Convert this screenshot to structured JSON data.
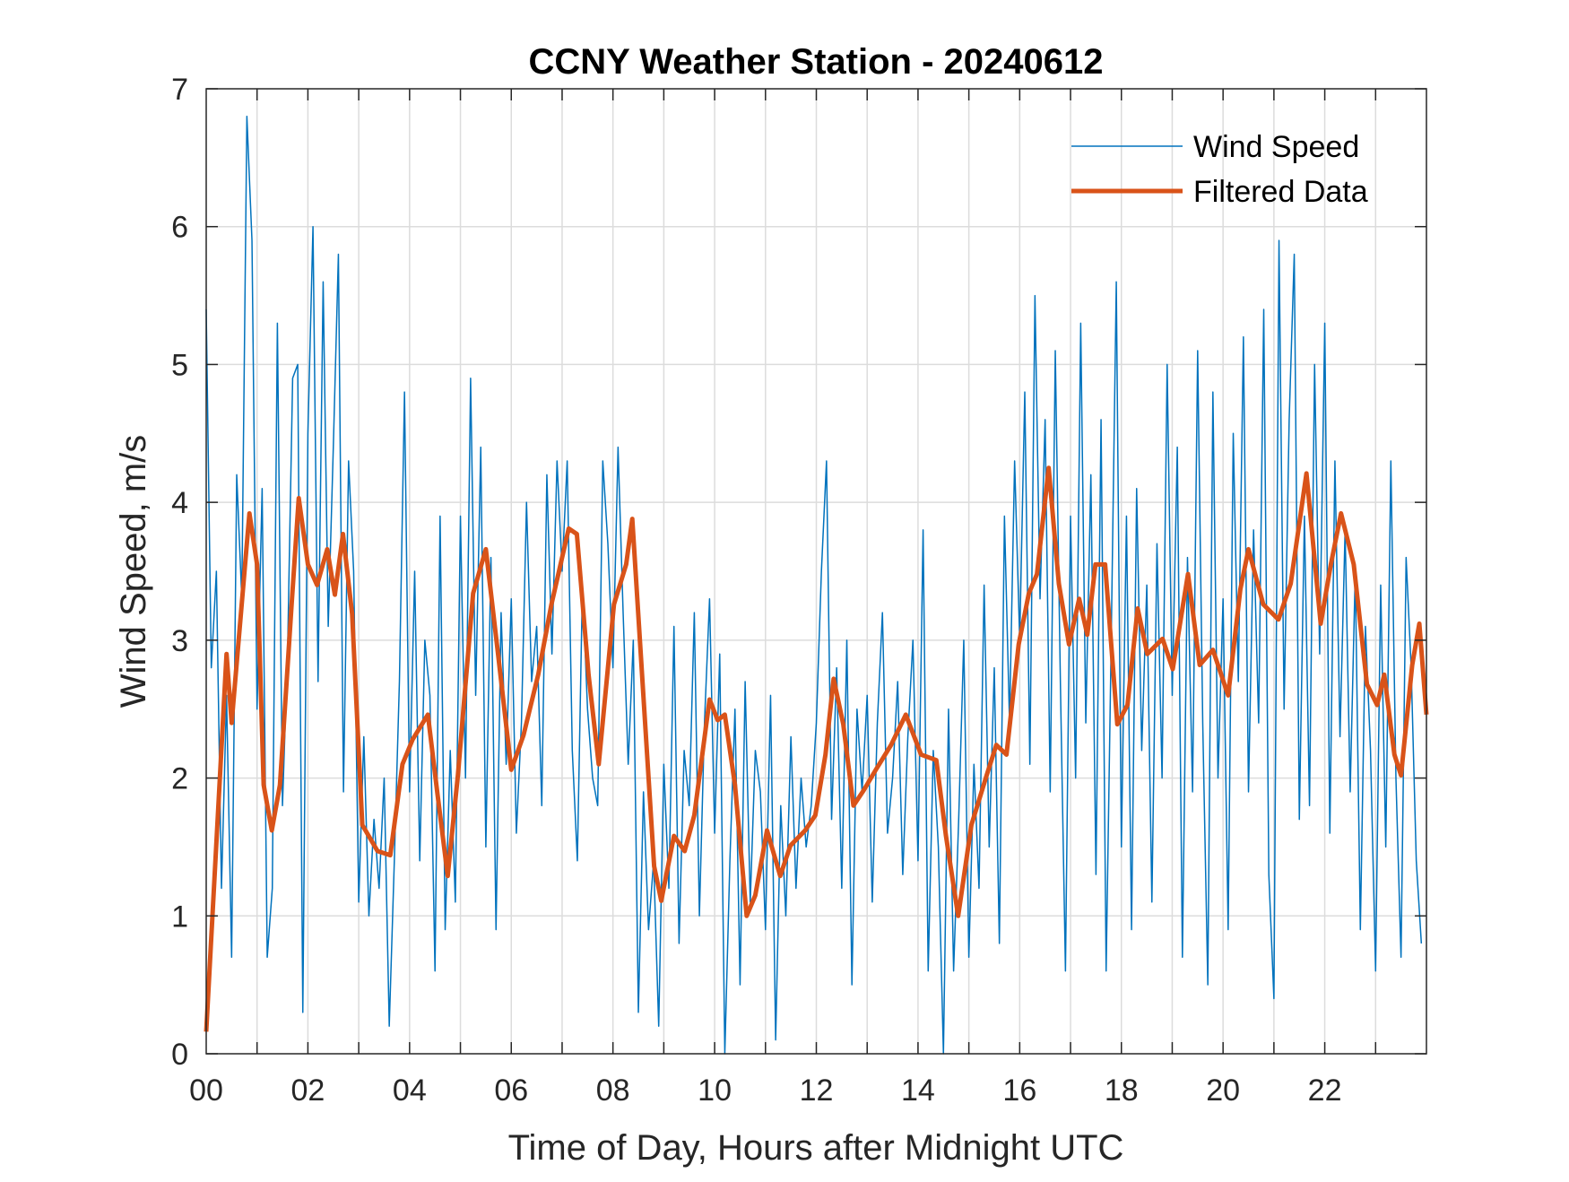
{
  "chart_data": {
    "type": "line",
    "title": "CCNY Weather Station - 20240612",
    "xlabel": "Time of Day, Hours after Midnight UTC",
    "ylabel": "Wind Speed, m/s",
    "xlim": [
      0,
      24
    ],
    "ylim": [
      0,
      7
    ],
    "xticks": [
      0,
      2,
      4,
      6,
      8,
      10,
      12,
      14,
      16,
      18,
      20,
      22
    ],
    "xtick_labels": [
      "00",
      "02",
      "04",
      "06",
      "08",
      "10",
      "12",
      "14",
      "16",
      "18",
      "20",
      "22"
    ],
    "yticks": [
      0,
      1,
      2,
      3,
      4,
      5,
      6,
      7
    ],
    "ytick_labels": [
      "0",
      "1",
      "2",
      "3",
      "4",
      "5",
      "6",
      "7"
    ],
    "grid": true,
    "legend_position": "top-right",
    "series": [
      {
        "name": "Wind Speed",
        "color": "#0072BD",
        "values": [
          5.4,
          2.8,
          3.5,
          1.2,
          2.6,
          0.7,
          4.2,
          3.3,
          6.8,
          5.9,
          2.5,
          4.1,
          0.7,
          1.2,
          5.3,
          1.8,
          2.9,
          4.9,
          5.0,
          0.3,
          4.5,
          6.0,
          2.7,
          5.6,
          3.1,
          4.4,
          5.8,
          1.9,
          4.3,
          3.5,
          1.1,
          2.3,
          1.0,
          1.7,
          1.2,
          2.0,
          0.2,
          1.4,
          2.7,
          4.8,
          1.9,
          3.5,
          1.4,
          3.0,
          2.6,
          0.6,
          3.9,
          0.9,
          2.2,
          1.1,
          3.9,
          2.0,
          4.9,
          2.6,
          4.4,
          1.5,
          3.6,
          0.9,
          3.2,
          2.1,
          3.3,
          1.6,
          2.4,
          4.0,
          2.7,
          3.1,
          1.8,
          4.2,
          2.9,
          4.3,
          3.5,
          4.3,
          2.2,
          1.4,
          3.4,
          2.5,
          2.0,
          1.8,
          4.3,
          3.7,
          2.8,
          4.4,
          3.2,
          2.1,
          3.0,
          0.3,
          1.9,
          0.9,
          1.4,
          0.2,
          2.1,
          1.2,
          3.1,
          0.8,
          2.2,
          1.8,
          3.2,
          1.0,
          2.4,
          3.3,
          1.6,
          2.9,
          0.0,
          1.4,
          2.5,
          0.5,
          2.7,
          1.1,
          2.2,
          1.9,
          0.9,
          2.6,
          0.1,
          1.8,
          1.0,
          2.3,
          1.2,
          2.0,
          1.5,
          1.8,
          2.4,
          3.5,
          4.3,
          1.7,
          2.8,
          1.2,
          3.0,
          0.5,
          2.5,
          1.9,
          2.6,
          1.1,
          2.4,
          3.2,
          1.6,
          2.0,
          2.7,
          1.3,
          2.3,
          3.0,
          1.4,
          3.8,
          0.6,
          2.2,
          1.5,
          0.0,
          2.5,
          0.6,
          1.7,
          3.0,
          0.7,
          2.1,
          1.2,
          3.4,
          1.5,
          2.8,
          0.8,
          3.9,
          2.4,
          4.3,
          3.0,
          4.8,
          2.1,
          5.5,
          3.3,
          4.6,
          1.9,
          5.1,
          2.7,
          0.6,
          3.9,
          2.0,
          5.3,
          2.4,
          4.2,
          1.3,
          4.6,
          0.6,
          3.0,
          5.6,
          1.5,
          3.9,
          0.9,
          4.1,
          2.2,
          3.4,
          1.1,
          3.7,
          2.0,
          5.0,
          2.6,
          4.4,
          0.7,
          3.6,
          1.9,
          5.1,
          2.4,
          0.5,
          4.8,
          2.0,
          3.3,
          0.9,
          4.5,
          2.7,
          5.2,
          1.9,
          3.8,
          2.4,
          5.4,
          1.3,
          0.4,
          5.9,
          2.5,
          4.6,
          5.8,
          1.7,
          3.9,
          1.8,
          5.0,
          2.9,
          5.3,
          1.6,
          4.3,
          2.3,
          3.8,
          1.9,
          3.5,
          0.9,
          3.1,
          2.2,
          0.6,
          3.4,
          1.5,
          4.3,
          2.0,
          0.7,
          3.6,
          2.8,
          1.4,
          0.8
        ]
      },
      {
        "name": "Filtered Data",
        "color": "#D95319",
        "x": [
          0,
          0.4,
          0.5,
          0.85,
          1.0,
          1.13,
          1.29,
          1.45,
          1.68,
          1.82,
          2.0,
          2.18,
          2.38,
          2.53,
          2.69,
          2.87,
          3.07,
          3.37,
          3.62,
          3.86,
          4.06,
          4.36,
          4.55,
          4.75,
          4.95,
          5.25,
          5.5,
          5.74,
          6.0,
          6.24,
          6.53,
          6.79,
          7.13,
          7.29,
          7.52,
          7.72,
          8.02,
          8.26,
          8.38,
          8.61,
          8.81,
          8.95,
          9.2,
          9.41,
          9.6,
          9.9,
          10.06,
          10.2,
          10.4,
          10.63,
          10.8,
          11.03,
          11.29,
          11.49,
          11.78,
          11.98,
          12.18,
          12.34,
          12.53,
          12.73,
          12.93,
          13.17,
          13.47,
          13.76,
          14.06,
          14.36,
          14.55,
          14.79,
          15.05,
          15.35,
          15.54,
          15.74,
          15.98,
          16.18,
          16.34,
          16.57,
          16.77,
          16.97,
          17.17,
          17.33,
          17.49,
          17.68,
          17.92,
          18.12,
          18.32,
          18.51,
          18.81,
          19.01,
          19.31,
          19.54,
          19.8,
          20.1,
          20.34,
          20.5,
          20.79,
          21.09,
          21.33,
          21.64,
          21.92,
          22.12,
          22.32,
          22.57,
          22.83,
          23.03,
          23.17,
          23.37,
          23.5,
          23.72,
          23.86,
          24.0
        ],
        "y": [
          0.16,
          2.9,
          2.4,
          3.92,
          3.55,
          1.95,
          1.62,
          1.95,
          3.26,
          4.03,
          3.55,
          3.4,
          3.66,
          3.33,
          3.77,
          3.19,
          1.66,
          1.47,
          1.44,
          2.1,
          2.28,
          2.46,
          1.88,
          1.29,
          2.02,
          3.34,
          3.66,
          2.9,
          2.06,
          2.31,
          2.75,
          3.26,
          3.81,
          3.77,
          2.75,
          2.1,
          3.26,
          3.55,
          3.88,
          2.53,
          1.36,
          1.11,
          1.58,
          1.47,
          1.73,
          2.57,
          2.42,
          2.46,
          1.95,
          1.0,
          1.15,
          1.62,
          1.29,
          1.51,
          1.62,
          1.73,
          2.17,
          2.72,
          2.39,
          1.8,
          1.91,
          2.06,
          2.24,
          2.46,
          2.17,
          2.13,
          1.58,
          1.0,
          1.66,
          2.02,
          2.24,
          2.17,
          2.97,
          3.34,
          3.48,
          4.25,
          3.41,
          2.97,
          3.3,
          3.04,
          3.55,
          3.55,
          2.39,
          2.53,
          3.23,
          2.9,
          3.01,
          2.79,
          3.48,
          2.82,
          2.93,
          2.6,
          3.37,
          3.66,
          3.26,
          3.15,
          3.41,
          4.21,
          3.12,
          3.55,
          3.92,
          3.55,
          2.68,
          2.53,
          2.75,
          2.17,
          2.02,
          2.82,
          3.12,
          2.46
        ]
      }
    ]
  }
}
